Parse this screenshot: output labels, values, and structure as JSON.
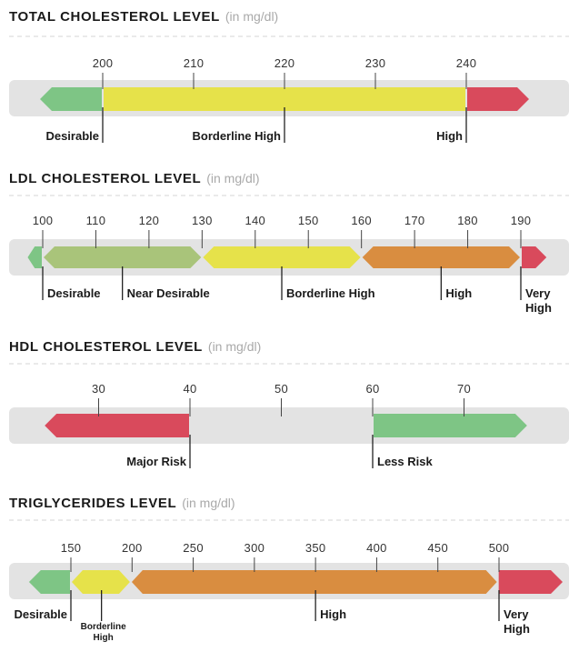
{
  "colors": {
    "green": "#7ec585",
    "lime": "#a9c47a",
    "yellow": "#e6e24a",
    "orange": "#d98d40",
    "red": "#d94a5c",
    "bar_bg": "#e3e3e3",
    "dashed": "#d5d5d5"
  },
  "chart_data": [
    {
      "type": "range-bar",
      "title": "TOTAL CHOLESTEROL LEVEL",
      "unit": "(in mg/dl)",
      "ticks": [
        {
          "value": 200,
          "label": "200"
        },
        {
          "value": 210,
          "label": "210"
        },
        {
          "value": 220,
          "label": "220"
        },
        {
          "value": 230,
          "label": "230"
        },
        {
          "value": 240,
          "label": "240"
        }
      ],
      "segments": [
        {
          "from": 193,
          "to": 200,
          "color": "green",
          "shape": "arrow-left"
        },
        {
          "from": 200,
          "to": 240,
          "color": "yellow",
          "shape": "rect"
        },
        {
          "from": 240,
          "to": 247,
          "color": "red",
          "shape": "arrow-right"
        }
      ],
      "categories": [
        {
          "label": "Desirable",
          "value": 200,
          "align": "end"
        },
        {
          "label": "Borderline High",
          "value": 220,
          "align": "end"
        },
        {
          "label": "High",
          "value": 240,
          "align": "end"
        }
      ]
    },
    {
      "type": "range-bar",
      "title": "LDL CHOLESTEROL LEVEL",
      "unit": "(in mg/dl)",
      "ticks": [
        {
          "value": 100,
          "label": "100"
        },
        {
          "value": 110,
          "label": "110"
        },
        {
          "value": 120,
          "label": "120"
        },
        {
          "value": 130,
          "label": "130"
        },
        {
          "value": 140,
          "label": "140"
        },
        {
          "value": 150,
          "label": "150"
        },
        {
          "value": 160,
          "label": "160"
        },
        {
          "value": 170,
          "label": "170"
        },
        {
          "value": 180,
          "label": "180"
        },
        {
          "value": 190,
          "label": "190"
        }
      ],
      "segments": [
        {
          "from": 97,
          "to": 100,
          "color": "green",
          "shape": "arrow-left"
        },
        {
          "from": 100,
          "to": 130,
          "color": "lime",
          "shape": "hex"
        },
        {
          "from": 130,
          "to": 160,
          "color": "yellow",
          "shape": "hex"
        },
        {
          "from": 160,
          "to": 190,
          "color": "orange",
          "shape": "hex"
        },
        {
          "from": 190,
          "to": 195,
          "color": "red",
          "shape": "arrow-right"
        }
      ],
      "categories": [
        {
          "label": "Desirable",
          "value": 100,
          "align": "start"
        },
        {
          "label": "Near Desirable",
          "value": 115,
          "align": "start"
        },
        {
          "label": "Borderline High",
          "value": 145,
          "align": "start"
        },
        {
          "label": "High",
          "value": 175,
          "align": "start"
        },
        {
          "label": "Very\nHigh",
          "value": 190,
          "align": "start"
        }
      ]
    },
    {
      "type": "range-bar",
      "title": "HDL CHOLESTEROL LEVEL",
      "unit": "(in mg/dl)",
      "ticks": [
        {
          "value": 30,
          "label": "30"
        },
        {
          "value": 40,
          "label": "40"
        },
        {
          "value": 50,
          "label": "50"
        },
        {
          "value": 60,
          "label": "60"
        },
        {
          "value": 70,
          "label": "70"
        }
      ],
      "segments": [
        {
          "from": 24,
          "to": 40,
          "color": "red",
          "shape": "arrow-left"
        },
        {
          "from": 60,
          "to": 77,
          "color": "green",
          "shape": "arrow-right"
        }
      ],
      "categories": [
        {
          "label": "Major Risk",
          "value": 40,
          "align": "end"
        },
        {
          "label": "Less Risk",
          "value": 60,
          "align": "start"
        }
      ]
    },
    {
      "type": "range-bar",
      "title": "TRIGLYCERIDES  LEVEL",
      "unit": "(in mg/dl)",
      "ticks": [
        {
          "value": 150,
          "label": "150"
        },
        {
          "value": 200,
          "label": "200"
        },
        {
          "value": 250,
          "label": "250"
        },
        {
          "value": 300,
          "label": "300"
        },
        {
          "value": 350,
          "label": "350"
        },
        {
          "value": 400,
          "label": "400"
        },
        {
          "value": 450,
          "label": "450"
        },
        {
          "value": 500,
          "label": "500"
        }
      ],
      "segments": [
        {
          "from": 115,
          "to": 150,
          "color": "green",
          "shape": "arrow-left"
        },
        {
          "from": 150,
          "to": 199,
          "color": "yellow",
          "shape": "hex"
        },
        {
          "from": 199,
          "to": 499,
          "color": "orange",
          "shape": "hex"
        },
        {
          "from": 499,
          "to": 565,
          "color": "red",
          "shape": "arrow-right"
        }
      ],
      "categories": [
        {
          "label": "Desirable",
          "value": 150,
          "align": "end",
          "size": "normal"
        },
        {
          "label": "Borderline\nHigh",
          "value": 175,
          "align": "middle",
          "size": "small"
        },
        {
          "label": "High",
          "value": 350,
          "align": "start",
          "size": "normal"
        },
        {
          "label": "Very\nHigh",
          "value": 500,
          "align": "start",
          "size": "normal"
        }
      ]
    }
  ]
}
